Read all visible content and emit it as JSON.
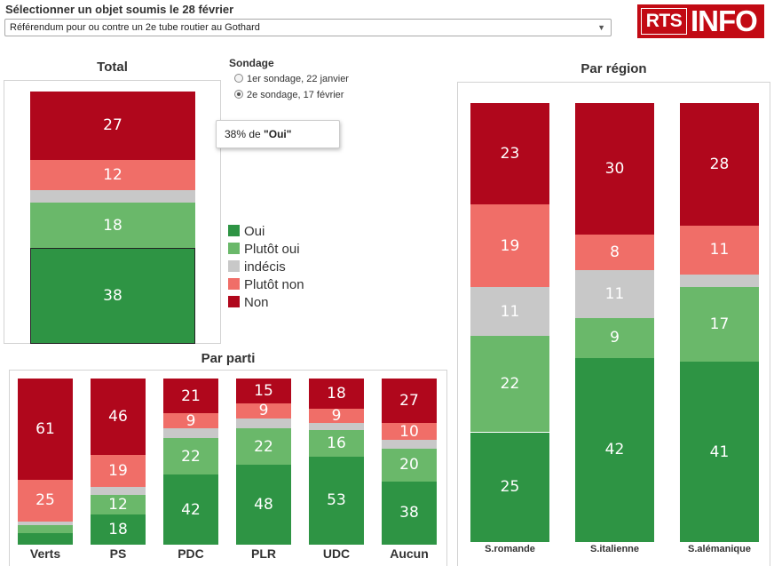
{
  "header": {
    "selector_title": "Sélectionner un objet soumis le 28 février",
    "selector_value": "Référendum pour ou contre un 2e tube routier au Gothard",
    "logo_left": "RTS",
    "logo_right": "INFO"
  },
  "sondage": {
    "title": "Sondage",
    "options": [
      {
        "label": "1er sondage, 22 janvier",
        "selected": false
      },
      {
        "label": "2e sondage, 17 février",
        "selected": true
      }
    ]
  },
  "tooltip": {
    "value": "38%",
    "middle": " de ",
    "label": "\"Oui\""
  },
  "colors": {
    "oui": "#2e9444",
    "plutot_oui": "#6ab86a",
    "indecis": "#c8c8c8",
    "plutot_non": "#f06e68",
    "non": "#b0071c"
  },
  "chart_data": [
    {
      "type": "bar",
      "stacked": true,
      "title": "Total",
      "categories": [
        "Total"
      ],
      "series": [
        {
          "name": "Oui",
          "key": "oui",
          "values": [
            38
          ]
        },
        {
          "name": "Plutôt oui",
          "key": "plutot_oui",
          "values": [
            18
          ]
        },
        {
          "name": "indécis",
          "key": "indecis",
          "values": [
            5
          ]
        },
        {
          "name": "Plutôt non",
          "key": "plutot_non",
          "values": [
            12
          ]
        },
        {
          "name": "Non",
          "key": "non",
          "values": [
            27
          ]
        }
      ],
      "ylim": [
        0,
        100
      ],
      "legend": "right"
    },
    {
      "type": "bar",
      "stacked": true,
      "title": "Par parti",
      "categories": [
        "Verts",
        "PS",
        "PDC",
        "PLR",
        "UDC",
        "Aucun"
      ],
      "series": [
        {
          "name": "Oui",
          "key": "oui",
          "values": [
            7,
            18,
            42,
            48,
            53,
            38
          ]
        },
        {
          "name": "Plutôt oui",
          "key": "plutot_oui",
          "values": [
            5,
            12,
            22,
            22,
            16,
            20
          ]
        },
        {
          "name": "indécis",
          "key": "indecis",
          "values": [
            2,
            5,
            6,
            6,
            4,
            5
          ]
        },
        {
          "name": "Plutôt non",
          "key": "plutot_non",
          "values": [
            25,
            19,
            9,
            9,
            9,
            10
          ]
        },
        {
          "name": "Non",
          "key": "non",
          "values": [
            61,
            46,
            21,
            15,
            18,
            27
          ]
        }
      ],
      "ylim": [
        0,
        100
      ]
    },
    {
      "type": "bar",
      "stacked": true,
      "title": "Par région",
      "categories": [
        "S.romande",
        "S.italienne",
        "S.alémanique"
      ],
      "series": [
        {
          "name": "Oui",
          "key": "oui",
          "values": [
            25,
            42,
            41
          ]
        },
        {
          "name": "Plutôt oui",
          "key": "plutot_oui",
          "values": [
            22,
            9,
            17
          ]
        },
        {
          "name": "indécis",
          "key": "indecis",
          "values": [
            11,
            11,
            3
          ]
        },
        {
          "name": "Plutôt non",
          "key": "plutot_non",
          "values": [
            19,
            8,
            11
          ]
        },
        {
          "name": "Non",
          "key": "non",
          "values": [
            23,
            30,
            28
          ]
        }
      ],
      "ylim": [
        0,
        100
      ]
    }
  ]
}
